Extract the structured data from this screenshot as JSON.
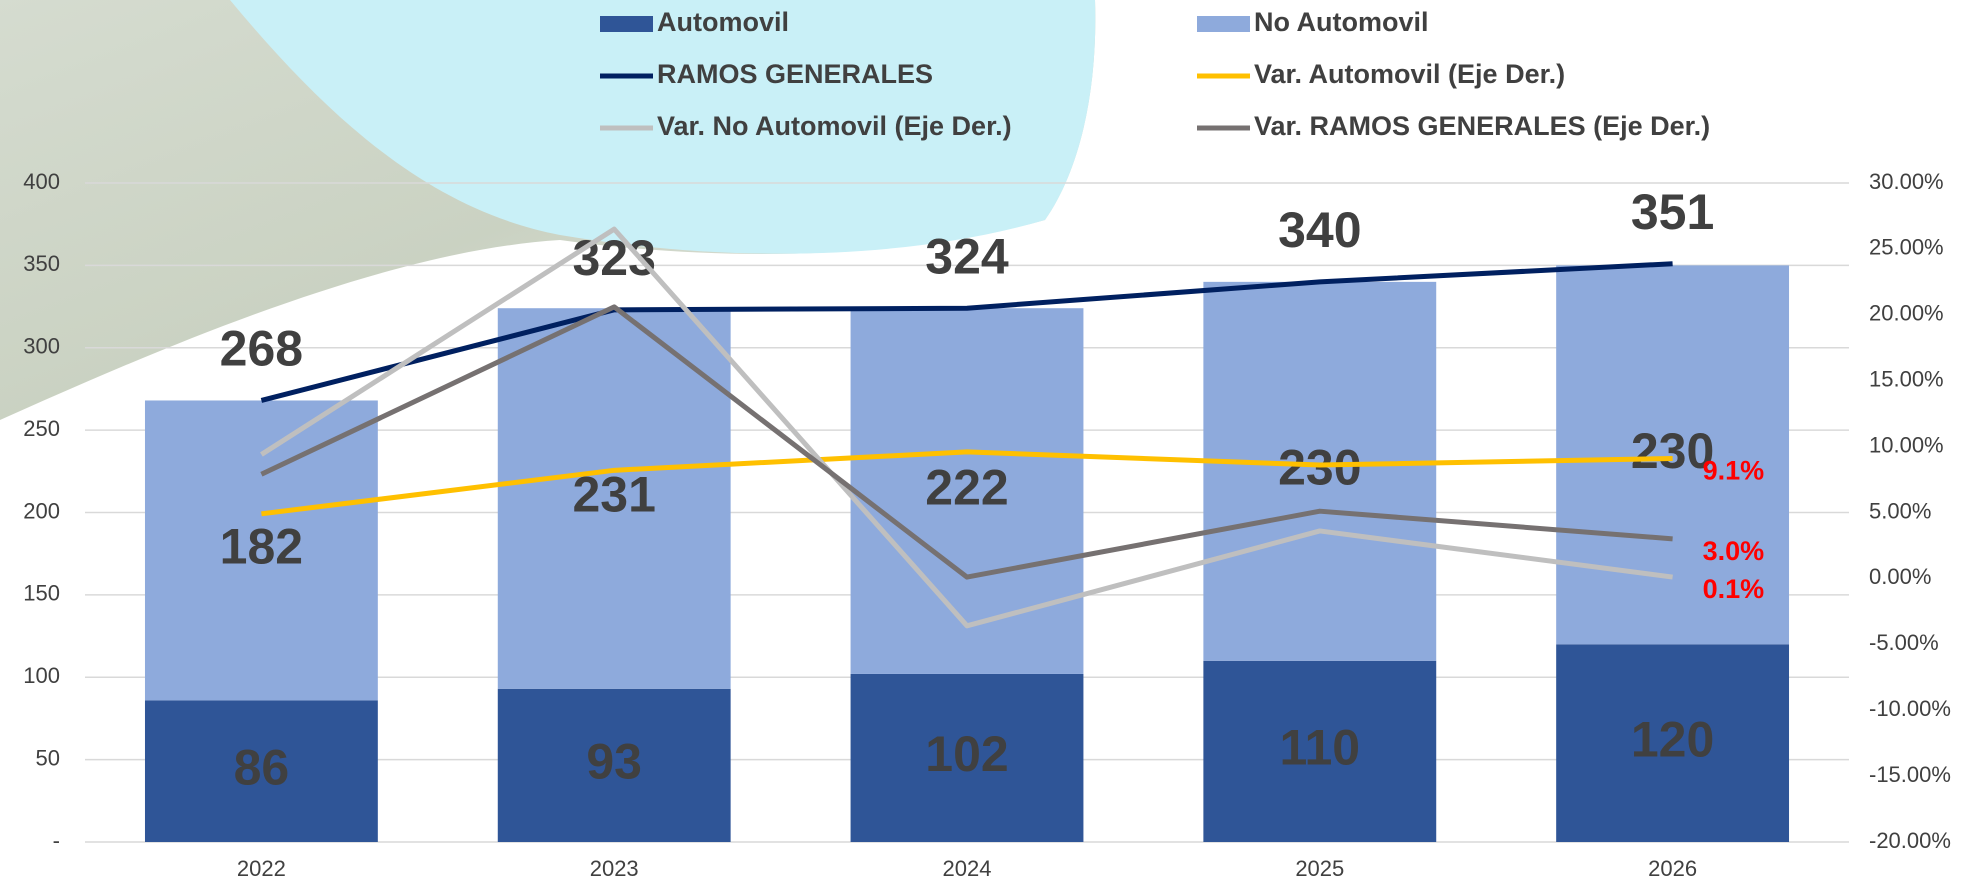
{
  "chart_data": {
    "type": "bar",
    "stacked": true,
    "categories": [
      "2022",
      "2023",
      "2024",
      "2025",
      "2026"
    ],
    "series": [
      {
        "name": "Automovil",
        "type": "bar",
        "color": "#2f5597",
        "values": [
          86,
          93,
          102,
          110,
          120
        ]
      },
      {
        "name": "No Automovil",
        "type": "bar",
        "color": "#8eaadc",
        "values": [
          182,
          231,
          222,
          230,
          230
        ]
      },
      {
        "name": "RAMOS GENERALES",
        "type": "line",
        "color": "#002060",
        "values": [
          268,
          323,
          324,
          340,
          351
        ]
      },
      {
        "name": "Var. Automovil (Eje Der.)",
        "type": "line",
        "axis": "y2",
        "color": "#ffc000",
        "values": [
          4.9,
          8.2,
          9.6,
          8.6,
          9.1
        ],
        "value_labels": [
          null,
          null,
          null,
          null,
          "9.1%"
        ]
      },
      {
        "name": "Var. No Automovil (Eje Der.)",
        "type": "line",
        "axis": "y2",
        "color": "#bfbfbf",
        "values": [
          9.4,
          26.5,
          -3.6,
          3.6,
          0.1
        ],
        "value_labels": [
          null,
          null,
          null,
          null,
          "0.1%"
        ]
      },
      {
        "name": "Var. RAMOS GENERALES (Eje Der.)",
        "type": "line",
        "axis": "y2",
        "color": "#767171",
        "values": [
          7.9,
          20.6,
          0.1,
          5.1,
          3.0
        ],
        "value_labels": [
          null,
          null,
          null,
          null,
          "3.0%"
        ]
      }
    ],
    "ylim": [
      0,
      400
    ],
    "yticks": [
      {
        "value": 0,
        "label": "-"
      },
      50,
      100,
      150,
      200,
      250,
      300,
      350,
      400
    ],
    "y2lim": [
      -20,
      30
    ],
    "y2ticks": [
      {
        "value": -20,
        "label": "-20.00%"
      },
      {
        "value": -15,
        "label": "-15.00%"
      },
      {
        "value": -10,
        "label": "-10.00%"
      },
      {
        "value": -5,
        "label": "-5.00%"
      },
      {
        "value": 0,
        "label": "0.00%"
      },
      {
        "value": 5,
        "label": "5.00%"
      },
      {
        "value": 10,
        "label": "10.00%"
      },
      {
        "value": 15,
        "label": "15.00%"
      },
      {
        "value": 20,
        "label": "20.00%"
      },
      {
        "value": 25,
        "label": "25.00%"
      },
      {
        "value": 30,
        "label": "30.00%"
      }
    ],
    "grid": true,
    "legend": "top"
  }
}
